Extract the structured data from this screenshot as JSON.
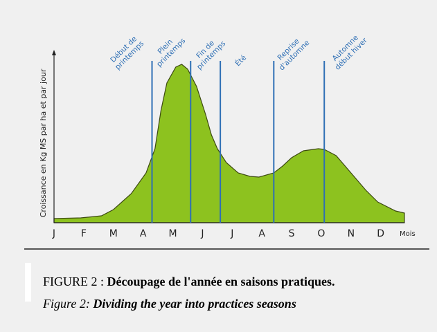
{
  "chart_data": {
    "type": "area",
    "y_label": "Croissance en Kg MS par ha et par jour",
    "x_label": "Mois",
    "categories": [
      "J",
      "F",
      "M",
      "A",
      "M",
      "J",
      "J",
      "A",
      "S",
      "O",
      "N",
      "D"
    ],
    "x": [
      0,
      0.9,
      1.6,
      2,
      2.6,
      3.1,
      3.4,
      3.6,
      3.8,
      4.1,
      4.3,
      4.5,
      4.8,
      5.1,
      5.3,
      5.5,
      5.8,
      6.2,
      6.6,
      6.9,
      7.4,
      7.7,
      8.0,
      8.4,
      8.9,
      9.1,
      9.5,
      10.0,
      10.5,
      10.9,
      11.5,
      11.8
    ],
    "values": [
      2.4,
      2.8,
      4,
      7.6,
      16.8,
      28.8,
      42.8,
      64.8,
      80.8,
      90,
      91.6,
      88.8,
      78.8,
      62.8,
      50.8,
      42.8,
      34.8,
      28.8,
      26.8,
      26.4,
      28.8,
      32.8,
      37.6,
      41.6,
      42.8,
      42.4,
      38.8,
      28.8,
      18.8,
      12,
      6.8,
      5.6
    ],
    "color": "#8dc21f",
    "xlim": [
      0,
      11.8
    ],
    "ylim": [
      0,
      100
    ],
    "seasons": [
      {
        "x": 3.3,
        "label": [
          "Début de",
          "printemps"
        ]
      },
      {
        "x": 4.6,
        "label": [
          "Plein",
          "printemps"
        ]
      },
      {
        "x": 5.6,
        "label": [
          "Fin de",
          "printemps"
        ]
      },
      {
        "x": 7.4,
        "label": [
          "Été"
        ]
      },
      {
        "x": 9.1,
        "label": [
          "Reprise",
          "d'automne"
        ]
      },
      {
        "x": null,
        "label": [
          "Automne",
          "début hiver"
        ]
      }
    ],
    "season_color": "#2e6fb5"
  },
  "caption": {
    "line1_prefix": "FIGURE 2 :",
    "line1_title": "Découpage de l'année en saisons pratiques.",
    "line2_prefix": "Figure 2:",
    "line2_title": "Dividing the year into practices seasons"
  }
}
